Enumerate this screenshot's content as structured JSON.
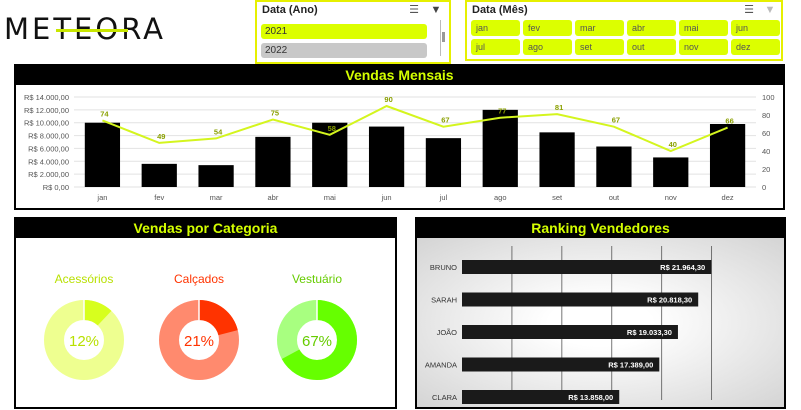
{
  "logo": {
    "text": "METEORA"
  },
  "slicer_year": {
    "title": "Data (Ano)",
    "items": [
      {
        "label": "2021",
        "selected": true
      },
      {
        "label": "2022",
        "selected": false
      }
    ]
  },
  "slicer_month": {
    "title": "Data (Mês)",
    "items": [
      "jan",
      "fev",
      "mar",
      "abr",
      "mai",
      "jun",
      "jul",
      "ago",
      "set",
      "out",
      "nov",
      "dez"
    ]
  },
  "monthly": {
    "title": "Vendas Mensais",
    "chart_data": {
      "type": "bar",
      "categories": [
        "jan",
        "fev",
        "mar",
        "abr",
        "mai",
        "jun",
        "jul",
        "ago",
        "set",
        "out",
        "nov",
        "dez"
      ],
      "series": [
        {
          "values": [
            10000,
            3600,
            3400,
            7800,
            10000,
            9400,
            7600,
            12000,
            8500,
            6300,
            4600,
            9800
          ]
        },
        {
          "type": "line",
          "axis": "right",
          "values": [
            74,
            49,
            54,
            75,
            58,
            90,
            67,
            77,
            81,
            67,
            40,
            66
          ]
        }
      ],
      "y_ticks": [
        "R$ 0,00",
        "R$ 2.000,00",
        "R$ 4.000,00",
        "R$ 6.000,00",
        "R$ 8.000,00",
        "R$ 10.000,00",
        "R$ 12.000,00",
        "R$ 14.000,00"
      ],
      "ylim": [
        0,
        14000
      ],
      "y2_ticks": [
        "0",
        "20",
        "40",
        "60",
        "80",
        "100"
      ],
      "y2lim": [
        0,
        100
      ],
      "grid": true,
      "colors": {
        "bar": "#000000",
        "line": "#d4f51e"
      }
    }
  },
  "category": {
    "title": "Vendas por Categoria",
    "chart_data": [
      {
        "type": "pie",
        "name": "Acessórios",
        "percent": 12,
        "label": "12%",
        "colors": {
          "main": "#d7ff1e",
          "rest": "#eeff90",
          "label": "#b8e000"
        }
      },
      {
        "type": "pie",
        "name": "Calçados",
        "percent": 21,
        "label": "21%",
        "colors": {
          "main": "#ff3300",
          "rest": "#ff8a6e",
          "label": "#ff3300"
        }
      },
      {
        "type": "pie",
        "name": "Vestuário",
        "percent": 67,
        "label": "67%",
        "colors": {
          "main": "#66ff00",
          "rest": "#a8ff80",
          "label": "#66cc00"
        }
      }
    ]
  },
  "ranking": {
    "title": "Ranking Vendedores",
    "chart_data": {
      "type": "bar",
      "orientation": "horizontal",
      "categories": [
        "BRUNO",
        "SARAH",
        "JOÃO",
        "AMANDA",
        "CLARA"
      ],
      "values": [
        21964.3,
        20818.3,
        19033.3,
        17389.0,
        13858.0
      ],
      "labels": [
        "R$ 21.964,30",
        "R$ 20.818,30",
        "R$ 19.033,30",
        "R$ 17.389,00",
        "R$ 13.858,00"
      ],
      "xlim": [
        0,
        26000
      ],
      "colors": {
        "bar": "#1a1a1a"
      }
    }
  }
}
